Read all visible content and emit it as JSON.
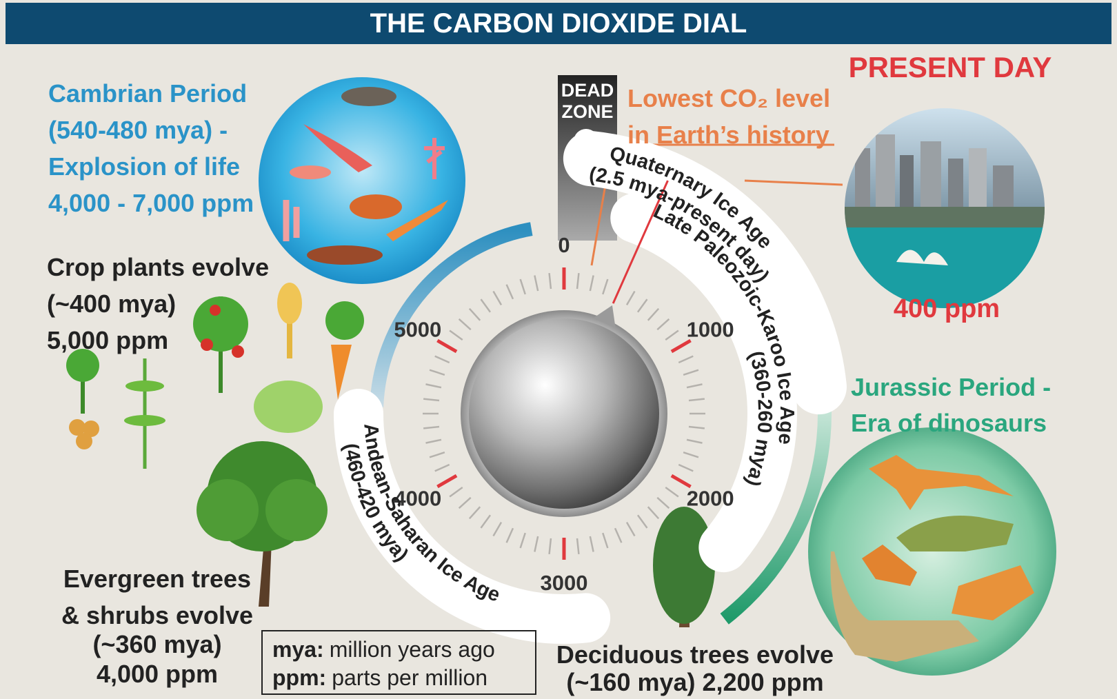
{
  "header": {
    "title": "THE CARBON DIOXIDE DIAL"
  },
  "cambrian": {
    "lines": [
      "Cambrian Period",
      "(540-480 mya) -",
      "Explosion of life",
      "4,000 - 7,000 ppm"
    ]
  },
  "crop_plants": {
    "lines": [
      "Crop plants evolve",
      "(~400 mya)",
      "5,000 ppm"
    ]
  },
  "evergreen": {
    "lines": [
      "Evergreen trees",
      "& shrubs evolve",
      "(~360 mya)",
      "4,000 ppm"
    ]
  },
  "deciduous": {
    "lines": [
      "Deciduous trees evolve",
      "(~160 mya) 2,200 ppm"
    ]
  },
  "jurassic": {
    "lines": [
      "Jurassic Period -",
      "Era of dinosaurs"
    ]
  },
  "present_day": {
    "title": "PRESENT DAY",
    "ppm": "400 ppm"
  },
  "dead_zone": {
    "lines": [
      "DEAD",
      "ZONE"
    ]
  },
  "lowest": {
    "lines": [
      "Lowest CO₂ level",
      "in Earth’s history"
    ]
  },
  "dial": {
    "labels": [
      0,
      1000,
      2000,
      3000,
      4000,
      5000
    ]
  },
  "ice_ages": [
    {
      "lines": [
        "Quaternary Ice Age",
        "(2.5 mya-present day)"
      ]
    },
    {
      "lines": [
        "Late Paleozoic-Karoo Ice Age",
        "(360-260 mya)"
      ]
    },
    {
      "lines": [
        "Andean-Saharan Ice Age",
        "(460-420 mya)"
      ]
    }
  ],
  "legend": [
    {
      "term": "mya:",
      "definition": "million years ago"
    },
    {
      "term": "ppm:",
      "definition": "parts per million"
    }
  ]
}
